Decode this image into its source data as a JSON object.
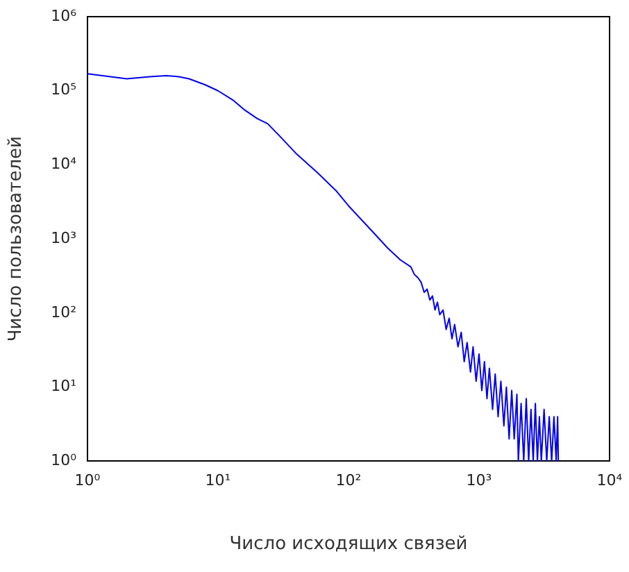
{
  "chart_data": {
    "type": "line",
    "xlabel": "Число исходящих связей",
    "ylabel": "Число пользователей",
    "log": "xy",
    "grid": false,
    "legend": false,
    "marker": "none",
    "line_style": "solid",
    "xlim": [
      1,
      10000
    ],
    "ylim": [
      1,
      1000000
    ],
    "xticks": [
      {
        "value": 1,
        "label": "10⁰"
      },
      {
        "value": 10,
        "label": "10¹"
      },
      {
        "value": 100,
        "label": "10²"
      },
      {
        "value": 1000,
        "label": "10³"
      },
      {
        "value": 10000,
        "label": "10⁴"
      }
    ],
    "yticks": [
      {
        "value": 1,
        "label": "10⁰"
      },
      {
        "value": 10,
        "label": "10¹"
      },
      {
        "value": 100,
        "label": "10²"
      },
      {
        "value": 1000,
        "label": "10³"
      },
      {
        "value": 10000,
        "label": "10⁴"
      },
      {
        "value": 100000,
        "label": "10⁵"
      },
      {
        "value": 1000000,
        "label": "10⁶"
      }
    ],
    "series": [
      {
        "color": "#0000ee",
        "x": [
          1,
          1.5,
          2,
          3,
          4,
          5,
          6,
          8,
          10,
          13,
          16,
          20,
          24,
          30,
          40,
          58,
          80,
          100,
          150,
          200,
          250,
          300,
          320,
          340,
          360,
          380,
          400,
          420,
          440,
          460,
          480,
          500,
          530,
          560,
          590,
          620,
          650,
          690,
          730,
          770,
          810,
          860,
          900,
          950,
          1000,
          1050,
          1100,
          1150,
          1200,
          1270,
          1330,
          1400,
          1470,
          1550,
          1620,
          1700,
          1780,
          1860,
          1950,
          2000,
          2100,
          2200,
          2300,
          2400,
          2500,
          2600,
          2700,
          2800,
          2900,
          3000,
          3150,
          3300,
          3450,
          3600,
          3750,
          3900,
          4000,
          4050
        ],
        "values": [
          170000,
          155000,
          145000,
          155000,
          160000,
          155000,
          145000,
          120000,
          100000,
          75000,
          55000,
          42000,
          36000,
          24000,
          14000,
          7800,
          4500,
          2800,
          1300,
          750,
          520,
          420,
          330,
          300,
          260,
          190,
          210,
          150,
          170,
          110,
          140,
          95,
          110,
          60,
          85,
          45,
          70,
          35,
          55,
          22,
          40,
          16,
          35,
          12,
          28,
          9,
          22,
          7,
          18,
          5,
          15,
          4,
          12,
          3,
          10,
          2,
          9,
          2,
          8,
          1,
          6,
          1,
          7,
          1,
          5,
          1,
          6,
          1,
          4,
          1,
          5,
          1,
          4,
          1,
          4,
          1,
          4,
          1
        ]
      }
    ]
  }
}
